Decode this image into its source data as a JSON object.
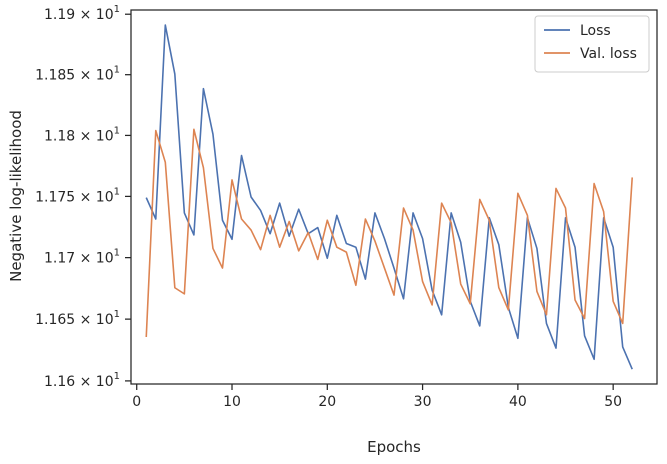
{
  "chart_data": {
    "type": "line",
    "title": "",
    "xlabel": "Epochs",
    "ylabel": "Negative log-likelihood",
    "xlim": [
      -0.6,
      54.6
    ],
    "ylim": [
      11.5975,
      11.9035
    ],
    "y_scale": "log",
    "grid": false,
    "legend_position": "top-right",
    "x_ticks": [
      0,
      10,
      20,
      30,
      40,
      50
    ],
    "x_tick_labels": [
      "0",
      "10",
      "20",
      "30",
      "40",
      "50"
    ],
    "y_ticks": [
      11.6,
      11.65,
      11.7,
      11.75,
      11.8,
      11.85,
      11.9
    ],
    "y_tick_labels": [
      {
        "mantissa": "1.16",
        "base": "10",
        "exp": "1"
      },
      {
        "mantissa": "1.165",
        "base": "10",
        "exp": "1"
      },
      {
        "mantissa": "1.17",
        "base": "10",
        "exp": "1"
      },
      {
        "mantissa": "1.175",
        "base": "10",
        "exp": "1"
      },
      {
        "mantissa": "1.18",
        "base": "10",
        "exp": "1"
      },
      {
        "mantissa": "1.185",
        "base": "10",
        "exp": "1"
      },
      {
        "mantissa": "1.19",
        "base": "10",
        "exp": "1"
      }
    ],
    "x": [
      1,
      2,
      3,
      4,
      5,
      6,
      7,
      8,
      9,
      10,
      11,
      12,
      13,
      14,
      15,
      16,
      17,
      18,
      19,
      20,
      21,
      22,
      23,
      24,
      25,
      26,
      27,
      28,
      29,
      30,
      31,
      32,
      33,
      34,
      35,
      36,
      37,
      38,
      39,
      40,
      41,
      42,
      43,
      44,
      45,
      46,
      47,
      48,
      49,
      50,
      51,
      52
    ],
    "series": [
      {
        "name": "Loss",
        "color": "#4c72b0",
        "values": [
          11.749,
          11.7315,
          11.891,
          11.8505,
          11.7365,
          11.7185,
          11.8385,
          11.801,
          11.7305,
          11.715,
          11.7835,
          11.7495,
          11.7385,
          11.7195,
          11.7445,
          11.7175,
          11.7395,
          11.7195,
          11.7245,
          11.6995,
          11.7345,
          11.7115,
          11.7085,
          11.6825,
          11.7365,
          11.7155,
          11.6915,
          11.6665,
          11.7365,
          11.7155,
          11.6735,
          11.6535,
          11.7365,
          11.7125,
          11.6645,
          11.6445,
          11.7325,
          11.7105,
          11.6595,
          11.6345,
          11.7325,
          11.7075,
          11.6465,
          11.6265,
          11.7325,
          11.7085,
          11.6365,
          11.6175,
          11.7325,
          11.7085,
          11.6275,
          11.6095
        ]
      },
      {
        "name": "Val. loss",
        "color": "#dd8452",
        "values": [
          11.6355,
          11.804,
          11.778,
          11.6755,
          11.6705,
          11.805,
          11.7735,
          11.7075,
          11.6915,
          11.7635,
          11.7315,
          11.7225,
          11.7065,
          11.7345,
          11.7085,
          11.7295,
          11.7055,
          11.7205,
          11.6985,
          11.7305,
          11.7085,
          11.7045,
          11.6775,
          11.7315,
          11.7135,
          11.6915,
          11.6695,
          11.7405,
          11.7225,
          11.6805,
          11.6615,
          11.7445,
          11.7285,
          11.6785,
          11.6625,
          11.7475,
          11.7305,
          11.6755,
          11.6575,
          11.7525,
          11.7345,
          11.6725,
          11.6535,
          11.7565,
          11.7405,
          11.6655,
          11.6505,
          11.7605,
          11.7375,
          11.6645,
          11.6465,
          11.7655
        ]
      }
    ]
  }
}
